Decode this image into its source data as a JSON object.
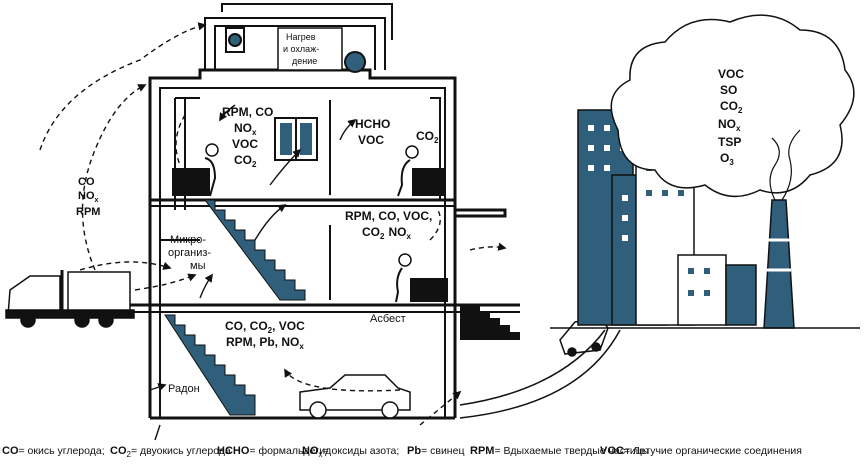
{
  "labels": {
    "hvac": [
      "Нагрев",
      "и охлаж-",
      "дение"
    ],
    "office_pollutants": [
      "RPM, CO",
      "NO",
      "VOC",
      "CO"
    ],
    "hcho_voc": [
      "HCHO",
      "VOC"
    ],
    "co2_right": "CO",
    "mid_pollutants": [
      "RPM, CO, VOC,",
      "CO",
      "NO"
    ],
    "microorganisms": [
      "Микро-",
      "организ-",
      "мы"
    ],
    "basement_pollutants": [
      "CO, CO",
      ", VOC",
      "RPM, Pb, NO"
    ],
    "asbestos": "Асбест",
    "radon": "Радон",
    "truck_exhaust": [
      "CO",
      "NO",
      "RPM"
    ],
    "cloud": [
      "VOC",
      "SO",
      "CO",
      "NO",
      "TSP",
      "O"
    ],
    "sub_x": "x",
    "sub_2": "2",
    "sub_3": "3"
  },
  "legend": [
    {
      "term": "CO",
      "sub": "",
      "def": "= окись углерода;"
    },
    {
      "term": "CO",
      "sub": "2",
      "def": "= двуокись углерода"
    },
    {
      "term": "HCHO",
      "sub": "",
      "def": "= формальдегид"
    },
    {
      "term": "NO",
      "sub": "x",
      "def": "= оксиды азота;"
    },
    {
      "term": "Pb",
      "sub": "",
      "def": "= свинец"
    },
    {
      "term": "RPM",
      "sub": "",
      "def": "= Вдыхаемые твердые частицы"
    },
    {
      "term": "VOC",
      "sub": "",
      "def": "= Летучие органические соединения"
    }
  ],
  "colors": {
    "steel": "#2f5f7a",
    "line": "#111111"
  }
}
